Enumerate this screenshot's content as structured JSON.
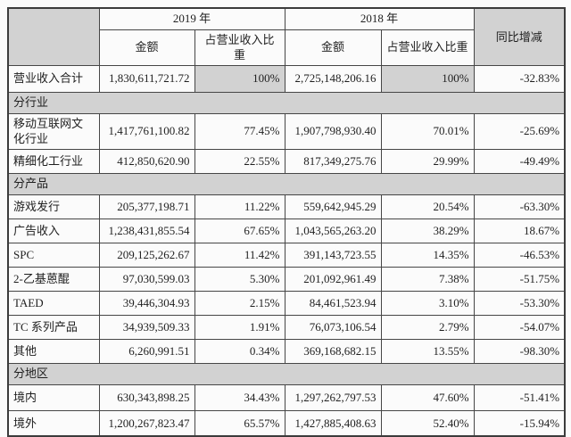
{
  "doc_type": "financial-report-revenue-table",
  "colors": {
    "shaded_cell": "#d2d2d2",
    "border": "#464646",
    "page_background": "#fbfbfb",
    "text": "#1f1f1f"
  },
  "table": {
    "header": {
      "corner": "",
      "col_2019": "2019 年",
      "col_2018": "2018 年",
      "col_yoy": "同比增减",
      "sub_amount_2019": "金额",
      "sub_ratio_2019": "占营业收入比重",
      "sub_amount_2018": "金额",
      "sub_ratio_2018": "占营业收入比重"
    },
    "rows": [
      {
        "type": "total",
        "label": "营业收入合计",
        "a2019": "1,830,611,721.72",
        "r2019": "100%",
        "a2018": "2,725,148,206.16",
        "r2018": "100%",
        "yoy": "-32.83%",
        "ratio_shaded": true
      },
      {
        "type": "section",
        "label": "分行业"
      },
      {
        "type": "data",
        "label": "移动互联网文化行业",
        "a2019": "1,417,761,100.82",
        "r2019": "77.45%",
        "a2018": "1,907,798,930.40",
        "r2018": "70.01%",
        "yoy": "-25.69%"
      },
      {
        "type": "data",
        "label": "精细化工行业",
        "a2019": "412,850,620.90",
        "r2019": "22.55%",
        "a2018": "817,349,275.76",
        "r2018": "29.99%",
        "yoy": "-49.49%"
      },
      {
        "type": "section",
        "label": "分产品"
      },
      {
        "type": "data",
        "label": "游戏发行",
        "a2019": "205,377,198.71",
        "r2019": "11.22%",
        "a2018": "559,642,945.29",
        "r2018": "20.54%",
        "yoy": "-63.30%"
      },
      {
        "type": "data",
        "label": "广告收入",
        "a2019": "1,238,431,855.54",
        "r2019": "67.65%",
        "a2018": "1,043,565,263.20",
        "r2018": "38.29%",
        "yoy": "18.67%"
      },
      {
        "type": "data",
        "label": "SPC",
        "a2019": "209,125,262.67",
        "r2019": "11.42%",
        "a2018": "391,143,723.55",
        "r2018": "14.35%",
        "yoy": "-46.53%"
      },
      {
        "type": "data",
        "label": "2-乙基蒽醌",
        "a2019": "97,030,599.03",
        "r2019": "5.30%",
        "a2018": "201,092,961.49",
        "r2018": "7.38%",
        "yoy": "-51.75%"
      },
      {
        "type": "data",
        "label": "TAED",
        "a2019": "39,446,304.93",
        "r2019": "2.15%",
        "a2018": "84,461,523.94",
        "r2018": "3.10%",
        "yoy": "-53.30%"
      },
      {
        "type": "data",
        "label": "TC 系列产品",
        "a2019": "34,939,509.33",
        "r2019": "1.91%",
        "a2018": "76,073,106.54",
        "r2018": "2.79%",
        "yoy": "-54.07%"
      },
      {
        "type": "data",
        "label": "其他",
        "a2019": "6,260,991.51",
        "r2019": "0.34%",
        "a2018": "369,168,682.15",
        "r2018": "13.55%",
        "yoy": "-98.30%"
      },
      {
        "type": "section",
        "label": "分地区"
      },
      {
        "type": "region",
        "label": "境内",
        "a2019": "630,343,898.25",
        "r2019": "34.43%",
        "a2018": "1,297,262,797.53",
        "r2018": "47.60%",
        "yoy": "-51.41%"
      },
      {
        "type": "region",
        "label": "境外",
        "a2019": "1,200,267,823.47",
        "r2019": "65.57%",
        "a2018": "1,427,885,408.63",
        "r2018": "52.40%",
        "yoy": "-15.94%"
      }
    ]
  }
}
